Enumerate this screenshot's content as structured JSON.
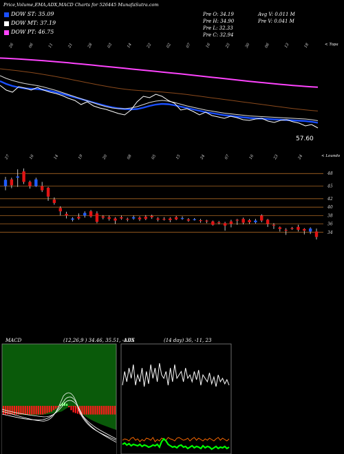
{
  "header": {
    "title": "Price,Volume,EMA,ADX,MACD Charts for 526445 MunafaSutra.com"
  },
  "dow_legend": [
    {
      "label": "DOW ST: 35.09",
      "color": "#1a4fff"
    },
    {
      "label": "DOW MT: 37.19",
      "color": "#ffffff"
    },
    {
      "label": "DOW PT: 46.75",
      "color": "#ff44ff"
    }
  ],
  "ohlc": {
    "open": "Pre  O: 34.19",
    "high": "Pre  H: 34.90",
    "low": "Pre  L: 32.33",
    "close": "Pre  C: 32.94",
    "avg_volume": "Avg V: 0.011 M",
    "prev_volume": "Pre  V: 0.041 M"
  },
  "panel1": {
    "corner_label": "< Topa",
    "last_value": "57.60",
    "date_ticks": [
      "26",
      "06",
      "11",
      "21",
      "28",
      "03",
      "14",
      "22",
      "02",
      "07",
      "16",
      "25",
      "30",
      "06",
      "13",
      "18"
    ]
  },
  "panel2": {
    "corner_label": "< Loundo",
    "date_ticks": [
      "27",
      "16",
      "14",
      "19",
      "20",
      "08",
      "05",
      "15",
      "24",
      "07",
      "16",
      "23",
      "24"
    ],
    "price_ticks": [
      "48",
      "45",
      "42",
      "40",
      "38",
      "36",
      "34"
    ]
  },
  "macd": {
    "label": "MACD",
    "params": "(12,26,9 ) 34.46, 35.51, -1.05"
  },
  "adx": {
    "label": "ADX",
    "params": "(14 day) 36, -11, 23"
  },
  "chart_data": {
    "type": "candlestick",
    "price_levels": [
      48,
      45,
      42,
      40,
      38,
      36,
      34
    ],
    "candles": [
      {
        "o": 45.0,
        "c": 46.5,
        "h": 47.2,
        "l": 44.0,
        "up": true
      },
      {
        "o": 46.6,
        "c": 45.2,
        "h": 47.0,
        "l": 44.5,
        "up": false
      },
      {
        "o": 47.0,
        "c": 47.3,
        "h": 49.0,
        "l": 44.8,
        "up": true
      },
      {
        "o": 48.5,
        "c": 46.0,
        "h": 49.2,
        "l": 45.5,
        "up": false
      },
      {
        "o": 46.0,
        "c": 45.0,
        "h": 46.3,
        "l": 44.4,
        "up": false
      },
      {
        "o": 45.0,
        "c": 46.6,
        "h": 47.0,
        "l": 44.8,
        "up": true
      },
      {
        "o": 45.0,
        "c": 44.0,
        "h": 46.0,
        "l": 43.6,
        "up": false
      },
      {
        "o": 44.6,
        "c": 42.5,
        "h": 44.8,
        "l": 41.5,
        "up": false
      },
      {
        "o": 41.8,
        "c": 41.0,
        "h": 42.3,
        "l": 40.6,
        "up": false
      },
      {
        "o": 39.8,
        "c": 39.0,
        "h": 40.2,
        "l": 38.0,
        "up": false
      },
      {
        "o": 38.4,
        "c": 38.0,
        "h": 38.9,
        "l": 37.3,
        "up": false
      },
      {
        "o": 37.0,
        "c": 37.3,
        "h": 37.6,
        "l": 36.6,
        "up": true
      },
      {
        "o": 37.7,
        "c": 37.3,
        "h": 38.5,
        "l": 37.0,
        "up": false
      },
      {
        "o": 38.0,
        "c": 38.6,
        "h": 39.0,
        "l": 37.5,
        "up": true
      },
      {
        "o": 39.0,
        "c": 37.8,
        "h": 39.3,
        "l": 37.5,
        "up": false
      },
      {
        "o": 38.5,
        "c": 36.5,
        "h": 39.0,
        "l": 36.2,
        "up": false
      },
      {
        "o": 37.8,
        "c": 37.5,
        "h": 38.1,
        "l": 37.1,
        "up": false
      },
      {
        "o": 37.6,
        "c": 37.2,
        "h": 38.0,
        "l": 36.8,
        "up": false
      },
      {
        "o": 37.3,
        "c": 36.8,
        "h": 37.6,
        "l": 36.0,
        "up": false
      },
      {
        "o": 37.6,
        "c": 37.3,
        "h": 38.0,
        "l": 37.0,
        "up": false
      },
      {
        "o": 37.2,
        "c": 37.0,
        "h": 37.5,
        "l": 36.6,
        "up": false
      },
      {
        "o": 37.3,
        "c": 37.6,
        "h": 38.0,
        "l": 37.0,
        "up": true
      },
      {
        "o": 37.5,
        "c": 37.1,
        "h": 37.8,
        "l": 36.7,
        "up": false
      },
      {
        "o": 37.7,
        "c": 37.2,
        "h": 38.1,
        "l": 36.9,
        "up": false
      },
      {
        "o": 37.9,
        "c": 37.6,
        "h": 38.2,
        "l": 37.2,
        "up": false
      },
      {
        "o": 37.3,
        "c": 37.0,
        "h": 37.6,
        "l": 36.6,
        "up": false
      },
      {
        "o": 37.2,
        "c": 37.0,
        "h": 37.6,
        "l": 36.8,
        "up": false
      },
      {
        "o": 37.3,
        "c": 36.9,
        "h": 37.6,
        "l": 36.4,
        "up": false
      },
      {
        "o": 37.6,
        "c": 37.1,
        "h": 37.9,
        "l": 36.9,
        "up": false
      },
      {
        "o": 37.3,
        "c": 37.4,
        "h": 37.8,
        "l": 37.0,
        "up": true
      },
      {
        "o": 37.1,
        "c": 36.8,
        "h": 37.4,
        "l": 36.5,
        "up": false
      },
      {
        "o": 37.0,
        "c": 37.1,
        "h": 37.4,
        "l": 36.8,
        "up": true
      },
      {
        "o": 36.9,
        "c": 36.7,
        "h": 37.2,
        "l": 36.3,
        "up": false
      },
      {
        "o": 36.8,
        "c": 36.6,
        "h": 37.0,
        "l": 36.2,
        "up": false
      },
      {
        "o": 36.6,
        "c": 35.8,
        "h": 36.8,
        "l": 35.6,
        "up": false
      },
      {
        "o": 36.4,
        "c": 36.2,
        "h": 36.7,
        "l": 35.9,
        "up": false
      },
      {
        "o": 36.2,
        "c": 35.6,
        "h": 36.5,
        "l": 34.4,
        "up": false
      },
      {
        "o": 36.6,
        "c": 36.0,
        "h": 37.0,
        "l": 35.2,
        "up": false
      },
      {
        "o": 37.0,
        "c": 36.8,
        "h": 37.2,
        "l": 35.8,
        "up": false
      },
      {
        "o": 37.2,
        "c": 36.3,
        "h": 37.5,
        "l": 35.9,
        "up": false
      },
      {
        "o": 36.9,
        "c": 36.4,
        "h": 37.2,
        "l": 36.0,
        "up": false
      },
      {
        "o": 36.4,
        "c": 36.8,
        "h": 37.2,
        "l": 36.1,
        "up": true
      },
      {
        "o": 38.0,
        "c": 36.8,
        "h": 38.3,
        "l": 36.4,
        "up": false
      },
      {
        "o": 37.0,
        "c": 36.0,
        "h": 37.2,
        "l": 35.3,
        "up": false
      },
      {
        "o": 35.8,
        "c": 35.6,
        "h": 36.2,
        "l": 34.8,
        "up": false
      },
      {
        "o": 35.2,
        "c": 34.8,
        "h": 35.4,
        "l": 34.2,
        "up": false
      },
      {
        "o": 34.6,
        "c": 34.4,
        "h": 35.0,
        "l": 33.4,
        "up": false
      },
      {
        "o": 35.0,
        "c": 34.8,
        "h": 35.3,
        "l": 34.6,
        "up": false
      },
      {
        "o": 35.3,
        "c": 34.6,
        "h": 35.8,
        "l": 34.2,
        "up": false
      },
      {
        "o": 34.8,
        "c": 34.4,
        "h": 35.0,
        "l": 33.5,
        "up": false
      },
      {
        "o": 34.2,
        "c": 34.9,
        "h": 35.2,
        "l": 33.6,
        "up": true
      },
      {
        "o": 34.2,
        "c": 32.9,
        "h": 34.9,
        "l": 32.3,
        "up": false
      }
    ],
    "ema_series": [
      {
        "color": "#ff44ff",
        "values": [
          84.4,
          84.8,
          85.3,
          85.8,
          86.4,
          87.0,
          87.6,
          88.3,
          89.0,
          89.7,
          90.5,
          91.3,
          92.2,
          93.0,
          93.9,
          94.8,
          95.7,
          96.6,
          97.5,
          98.4,
          99.3,
          100.2,
          101.1,
          102.0,
          102.9,
          103.8,
          104.7,
          105.6,
          106.5,
          107.4,
          108.4,
          109.4,
          110.4,
          111.4,
          112.4,
          113.3,
          114.3,
          115.3,
          116.3,
          117.2,
          118.2,
          119.1,
          120.0,
          120.9,
          121.8,
          122.6,
          123.4,
          124.2,
          124.9,
          125.6,
          126.2,
          126.7
        ]
      },
      {
        "color": "#8b4a1c",
        "values": [
          100.0,
          101.0,
          102.0,
          103.0,
          104.2,
          105.4,
          106.8,
          108.2,
          109.8,
          111.4,
          113.0,
          114.8,
          116.6,
          118.4,
          120.2,
          122.0,
          123.8,
          125.4,
          127.0,
          128.4,
          129.6,
          130.6,
          131.4,
          132.0,
          132.6,
          133.2,
          133.8,
          134.6,
          135.4,
          136.4,
          137.4,
          138.6,
          139.8,
          141.0,
          142.2,
          143.4,
          144.6,
          145.8,
          147.0,
          148.2,
          149.4,
          150.6,
          151.8,
          153.0,
          154.2,
          155.4,
          156.6,
          157.8,
          158.8,
          159.8,
          160.6,
          161.4
        ]
      },
      {
        "color": "#1a4fff",
        "values": [
          118.0,
          122.0,
          125.0,
          127.0,
          128.5,
          129.0,
          129.5,
          130.5,
          132.0,
          134.0,
          136.5,
          139.0,
          141.5,
          144.0,
          146.5,
          149.0,
          151.5,
          154.0,
          156.0,
          157.5,
          158.5,
          159.0,
          158.5,
          156.5,
          154.0,
          152.0,
          151.0,
          151.5,
          153.0,
          155.0,
          157.0,
          159.0,
          161.0,
          163.0,
          164.5,
          166.0,
          167.5,
          168.5,
          169.5,
          170.5,
          171.5,
          172.0,
          172.5,
          173.0,
          173.5,
          174.0,
          174.5,
          175.0,
          175.5,
          176.0,
          177.0,
          178.5
        ]
      },
      {
        "color": "#dddddd",
        "values": [
          110.0,
          114.0,
          117.0,
          119.5,
          121.5,
          123.0,
          124.5,
          126.5,
          129.0,
          131.5,
          134.5,
          137.5,
          140.5,
          143.5,
          146.5,
          149.5,
          152.5,
          155.0,
          157.0,
          158.0,
          158.0,
          157.0,
          155.0,
          152.0,
          149.0,
          147.0,
          146.0,
          147.0,
          149.0,
          151.5,
          154.0,
          156.0,
          158.0,
          160.0,
          161.5,
          163.0,
          164.5,
          165.5,
          166.5,
          167.5,
          168.5,
          169.0,
          169.5,
          170.0,
          170.5,
          171.0,
          171.5,
          172.0,
          172.5,
          173.0,
          174.0,
          175.5
        ]
      },
      {
        "color": "#ffffff",
        "values": [
          124,
          131,
          134,
          126,
          128,
          131,
          127,
          131,
          134,
          136,
          139,
          143,
          146,
          152,
          148,
          154,
          157,
          159,
          162,
          165,
          167,
          160,
          148,
          140,
          142,
          137,
          140,
          146,
          150,
          160,
          158,
          162,
          167,
          163,
          168,
          170,
          172,
          169,
          171,
          174,
          175,
          173,
          172,
          176,
          178,
          175,
          174,
          177,
          179,
          183,
          181,
          186
        ]
      }
    ],
    "macd_hist": [
      -12,
      -12,
      -12,
      -12,
      -12,
      -12,
      -12,
      -12,
      -12,
      -12,
      -12,
      -12,
      -12,
      -12,
      -12,
      -12,
      -12,
      -12,
      -12,
      -11,
      -10,
      -9,
      -8,
      -6,
      -4,
      -2,
      2,
      4,
      5,
      3,
      -2,
      -6,
      -9,
      -10,
      -11,
      -12,
      -12,
      -12,
      -12,
      -12,
      -12,
      -12,
      -12,
      -12,
      -12,
      -12,
      -12,
      -12,
      -12,
      -12,
      -12,
      -12
    ],
    "adx_series": [
      {
        "color": "#ffffff",
        "values": [
          60,
          40,
          55,
          35,
          50,
          30,
          60,
          45,
          55,
          35,
          62,
          40,
          58,
          30,
          50,
          35,
          55,
          28,
          45,
          50,
          40,
          60,
          35,
          55,
          30,
          50,
          45,
          40,
          55,
          35,
          50,
          45,
          55,
          40,
          52,
          38,
          60,
          45,
          50,
          55,
          42,
          58,
          48,
          62,
          45,
          55,
          50,
          58,
          52,
          60
        ]
      },
      {
        "color": "#ff6a00",
        "values": [
          140,
          138,
          139,
          141,
          137,
          136,
          140,
          138,
          142,
          139,
          141,
          137,
          138,
          140,
          136,
          142,
          139,
          141,
          137,
          138,
          140,
          136,
          138,
          139,
          141,
          137,
          136,
          138,
          140,
          139,
          137,
          141,
          138,
          136,
          140,
          137,
          139,
          141,
          138,
          140,
          137,
          139,
          141,
          138,
          136,
          140,
          137,
          139,
          141,
          138
        ]
      },
      {
        "color": "#00ff00",
        "values": [
          146,
          144,
          147,
          145,
          148,
          146,
          147,
          148,
          146,
          149,
          147,
          148,
          150,
          149,
          147,
          148,
          146,
          150,
          142,
          138,
          141,
          146,
          148,
          150,
          149,
          151,
          148,
          147,
          150,
          149,
          152,
          150,
          148,
          151,
          149,
          150,
          152,
          148,
          151,
          149,
          150,
          153,
          151,
          149,
          152,
          150,
          151,
          149,
          152,
          150
        ]
      }
    ]
  }
}
